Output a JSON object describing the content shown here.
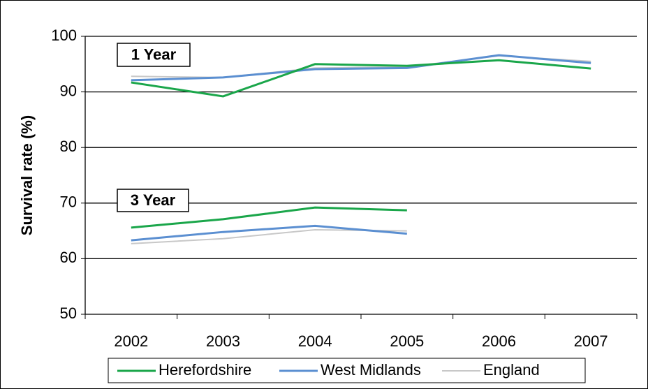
{
  "chart_data": {
    "type": "line",
    "y_label": "Survival rate (%)",
    "categories": [
      "2002",
      "2003",
      "2004",
      "2005",
      "2006",
      "2007"
    ],
    "annotations": [
      {
        "text": "1 Year"
      },
      {
        "text": "3 Year"
      }
    ],
    "series": [
      {
        "name": "Herefordshire",
        "color": "#1aa64a",
        "values": [
          91.7,
          89.2,
          95.0,
          94.7,
          95.7,
          94.2
        ],
        "values_3_year": [
          65.6,
          67.1,
          69.2,
          68.7,
          null,
          null
        ]
      },
      {
        "name": "West Midlands",
        "color": "#5b8fd1",
        "values": [
          92.1,
          92.6,
          94.1,
          94.3,
          96.6,
          95.2
        ],
        "values_3_year": [
          63.3,
          64.8,
          65.9,
          64.5,
          null,
          null
        ]
      },
      {
        "name": "England",
        "color": "#c8c8c8",
        "values": [
          92.8,
          92.6,
          94.3,
          94.5,
          96.5,
          95.5
        ],
        "values_3_year": [
          62.7,
          63.6,
          65.2,
          65.0,
          null,
          null
        ]
      }
    ],
    "ylim": [
      50,
      100
    ],
    "yticks": [
      50,
      60,
      70,
      80,
      90,
      100
    ],
    "grid": true
  }
}
